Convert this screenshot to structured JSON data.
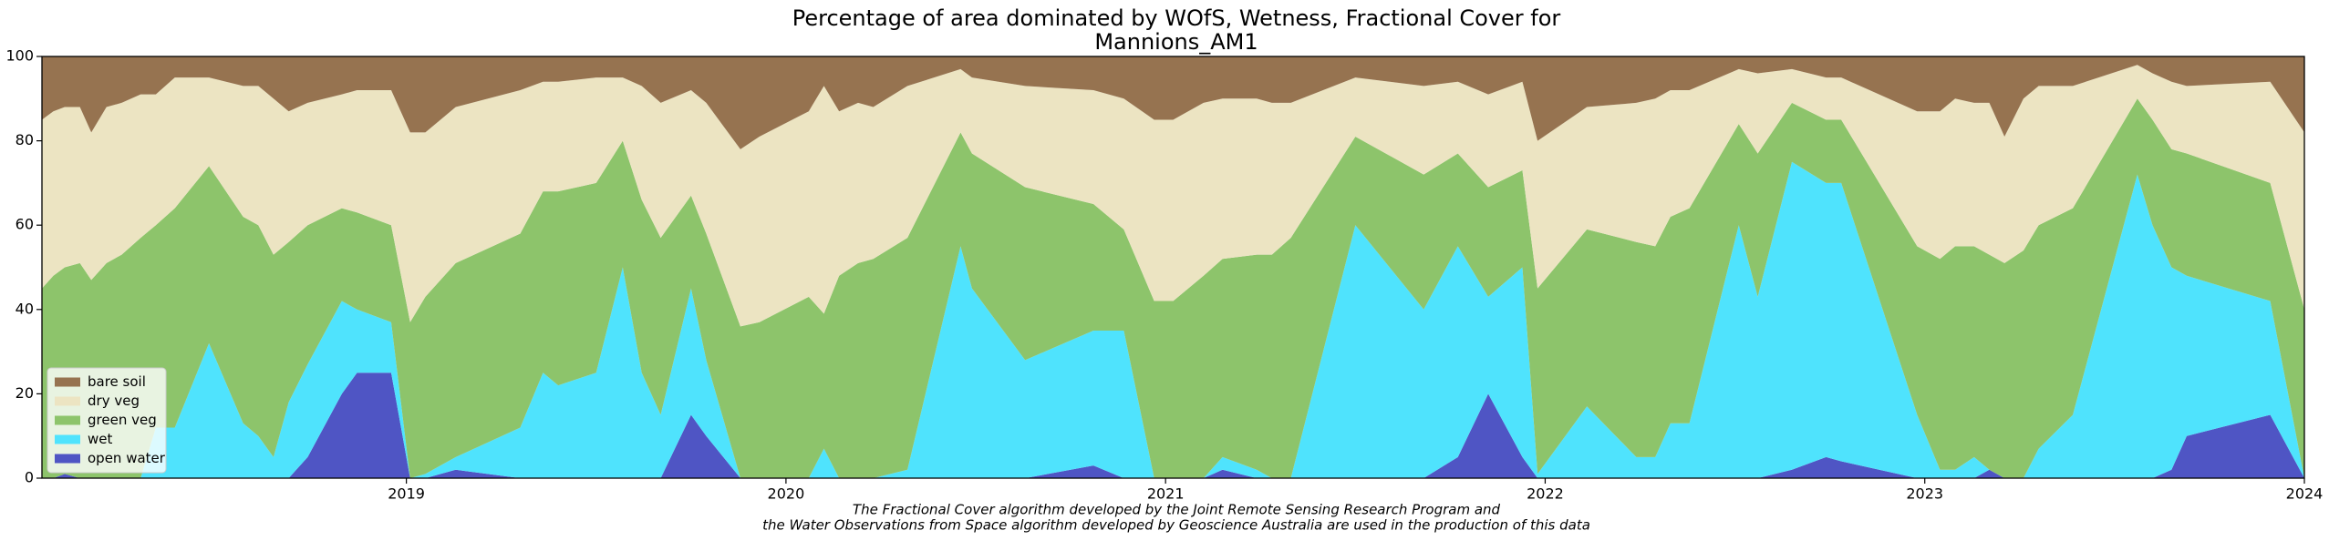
{
  "chart_data": {
    "type": "stacked_area",
    "title": "Percentage of area dominated by WOfS, Wetness, Fractional Cover for",
    "subtitle": "Mannions_AM1",
    "footnote": [
      "The Fractional Cover algorithm developed by the Joint Remote Sensing Research Program and",
      "the Water Observations from Space algorithm developed by Geoscience Australia are used in the production of this data"
    ],
    "legend": "lower left",
    "xlim": [
      2018.04,
      2024.0
    ],
    "xticks": [
      2019,
      2020,
      2021,
      2022,
      2023,
      2024
    ],
    "ylim": [
      0,
      100
    ],
    "yticks": [
      0,
      20,
      40,
      60,
      80,
      100
    ],
    "x": [
      2018.04,
      2018.07,
      2018.1,
      2018.14,
      2018.17,
      2018.21,
      2018.25,
      2018.3,
      2018.34,
      2018.39,
      2018.48,
      2018.57,
      2018.61,
      2018.65,
      2018.69,
      2018.74,
      2018.83,
      2018.87,
      2018.96,
      2019.01,
      2019.05,
      2019.13,
      2019.3,
      2019.36,
      2019.4,
      2019.5,
      2019.57,
      2019.62,
      2019.67,
      2019.75,
      2019.79,
      2019.88,
      2019.93,
      2020.06,
      2020.1,
      2020.14,
      2020.19,
      2020.23,
      2020.32,
      2020.46,
      2020.49,
      2020.63,
      2020.81,
      2020.89,
      2020.97,
      2021.02,
      2021.1,
      2021.15,
      2021.24,
      2021.28,
      2021.33,
      2021.5,
      2021.68,
      2021.77,
      2021.85,
      2021.94,
      2021.98,
      2022.11,
      2022.24,
      2022.29,
      2022.33,
      2022.38,
      2022.51,
      2022.56,
      2022.65,
      2022.74,
      2022.78,
      2022.98,
      2023.04,
      2023.08,
      2023.13,
      2023.17,
      2023.21,
      2023.26,
      2023.3,
      2023.39,
      2023.56,
      2023.6,
      2023.65,
      2023.69,
      2023.91,
      2024.0
    ],
    "series": [
      {
        "name": "bare soil",
        "color": "#967350",
        "values": [
          15,
          13,
          12,
          12,
          18,
          12,
          11,
          9,
          9,
          5,
          5,
          7,
          7,
          10,
          13,
          11,
          9,
          8,
          8,
          18,
          18,
          12,
          8,
          6,
          6,
          5,
          5,
          7,
          11,
          8,
          11,
          22,
          19,
          13,
          7,
          13,
          11,
          12,
          7,
          3,
          5,
          7,
          8,
          10,
          15,
          15,
          11,
          10,
          10,
          11,
          11,
          5,
          7,
          6,
          9,
          6,
          20,
          12,
          11,
          10,
          8,
          8,
          3,
          4,
          3,
          5,
          5,
          13,
          13,
          10,
          11,
          11,
          19,
          10,
          7,
          7,
          2,
          4,
          6,
          7,
          6,
          18
        ]
      },
      {
        "name": "dry veg",
        "color": "#ece4c2",
        "values": [
          40,
          39,
          38,
          37,
          35,
          37,
          36,
          34,
          31,
          31,
          21,
          31,
          33,
          37,
          31,
          29,
          27,
          29,
          32,
          45,
          39,
          37,
          34,
          26,
          26,
          25,
          15,
          27,
          32,
          25,
          31,
          42,
          44,
          44,
          54,
          39,
          38,
          36,
          36,
          15,
          18,
          24,
          27,
          31,
          43,
          43,
          41,
          38,
          37,
          36,
          32,
          14,
          21,
          17,
          22,
          21,
          35,
          29,
          33,
          35,
          30,
          28,
          13,
          19,
          8,
          10,
          10,
          32,
          35,
          35,
          34,
          36,
          30,
          36,
          33,
          29,
          8,
          11,
          16,
          16,
          24,
          42
        ]
      },
      {
        "name": "green veg",
        "color": "#8dc46b",
        "values": [
          45,
          48,
          49,
          51,
          47,
          51,
          53,
          57,
          48,
          52,
          42,
          49,
          50,
          48,
          38,
          33,
          22,
          23,
          23,
          37,
          42,
          46,
          46,
          43,
          46,
          45,
          30,
          41,
          42,
          22,
          30,
          36,
          37,
          43,
          32,
          48,
          51,
          52,
          55,
          27,
          32,
          41,
          30,
          24,
          42,
          42,
          48,
          47,
          51,
          53,
          57,
          21,
          32,
          22,
          26,
          23,
          44,
          42,
          51,
          50,
          49,
          51,
          24,
          34,
          14,
          15,
          15,
          40,
          50,
          53,
          50,
          51,
          51,
          54,
          53,
          49,
          18,
          25,
          28,
          29,
          28,
          40
        ]
      },
      {
        "name": "wet",
        "color": "#4fe3fd",
        "values": [
          0,
          0,
          0,
          0,
          0,
          0,
          0,
          0,
          12,
          12,
          32,
          13,
          10,
          5,
          18,
          22,
          22,
          15,
          12,
          0,
          1,
          3,
          12,
          25,
          22,
          25,
          50,
          25,
          15,
          30,
          18,
          0,
          0,
          0,
          7,
          0,
          0,
          0,
          2,
          55,
          45,
          28,
          32,
          35,
          0,
          0,
          0,
          3,
          2,
          0,
          0,
          60,
          40,
          50,
          23,
          45,
          1,
          17,
          5,
          5,
          13,
          13,
          60,
          43,
          73,
          65,
          66,
          15,
          2,
          2,
          5,
          0,
          0,
          0,
          7,
          15,
          72,
          60,
          48,
          38,
          27,
          0
        ]
      },
      {
        "name": "open water",
        "color": "#4f55c4",
        "values": [
          0,
          0,
          1,
          0,
          0,
          0,
          0,
          0,
          0,
          0,
          0,
          0,
          0,
          0,
          0,
          5,
          20,
          25,
          25,
          0,
          0,
          2,
          0,
          0,
          0,
          0,
          0,
          0,
          0,
          15,
          10,
          0,
          0,
          0,
          0,
          0,
          0,
          0,
          0,
          0,
          0,
          0,
          3,
          0,
          0,
          0,
          0,
          2,
          0,
          0,
          0,
          0,
          0,
          5,
          20,
          5,
          0,
          0,
          0,
          0,
          0,
          0,
          0,
          0,
          2,
          5,
          4,
          0,
          0,
          0,
          0,
          2,
          0,
          0,
          0,
          0,
          0,
          0,
          2,
          10,
          15,
          0
        ]
      }
    ]
  }
}
